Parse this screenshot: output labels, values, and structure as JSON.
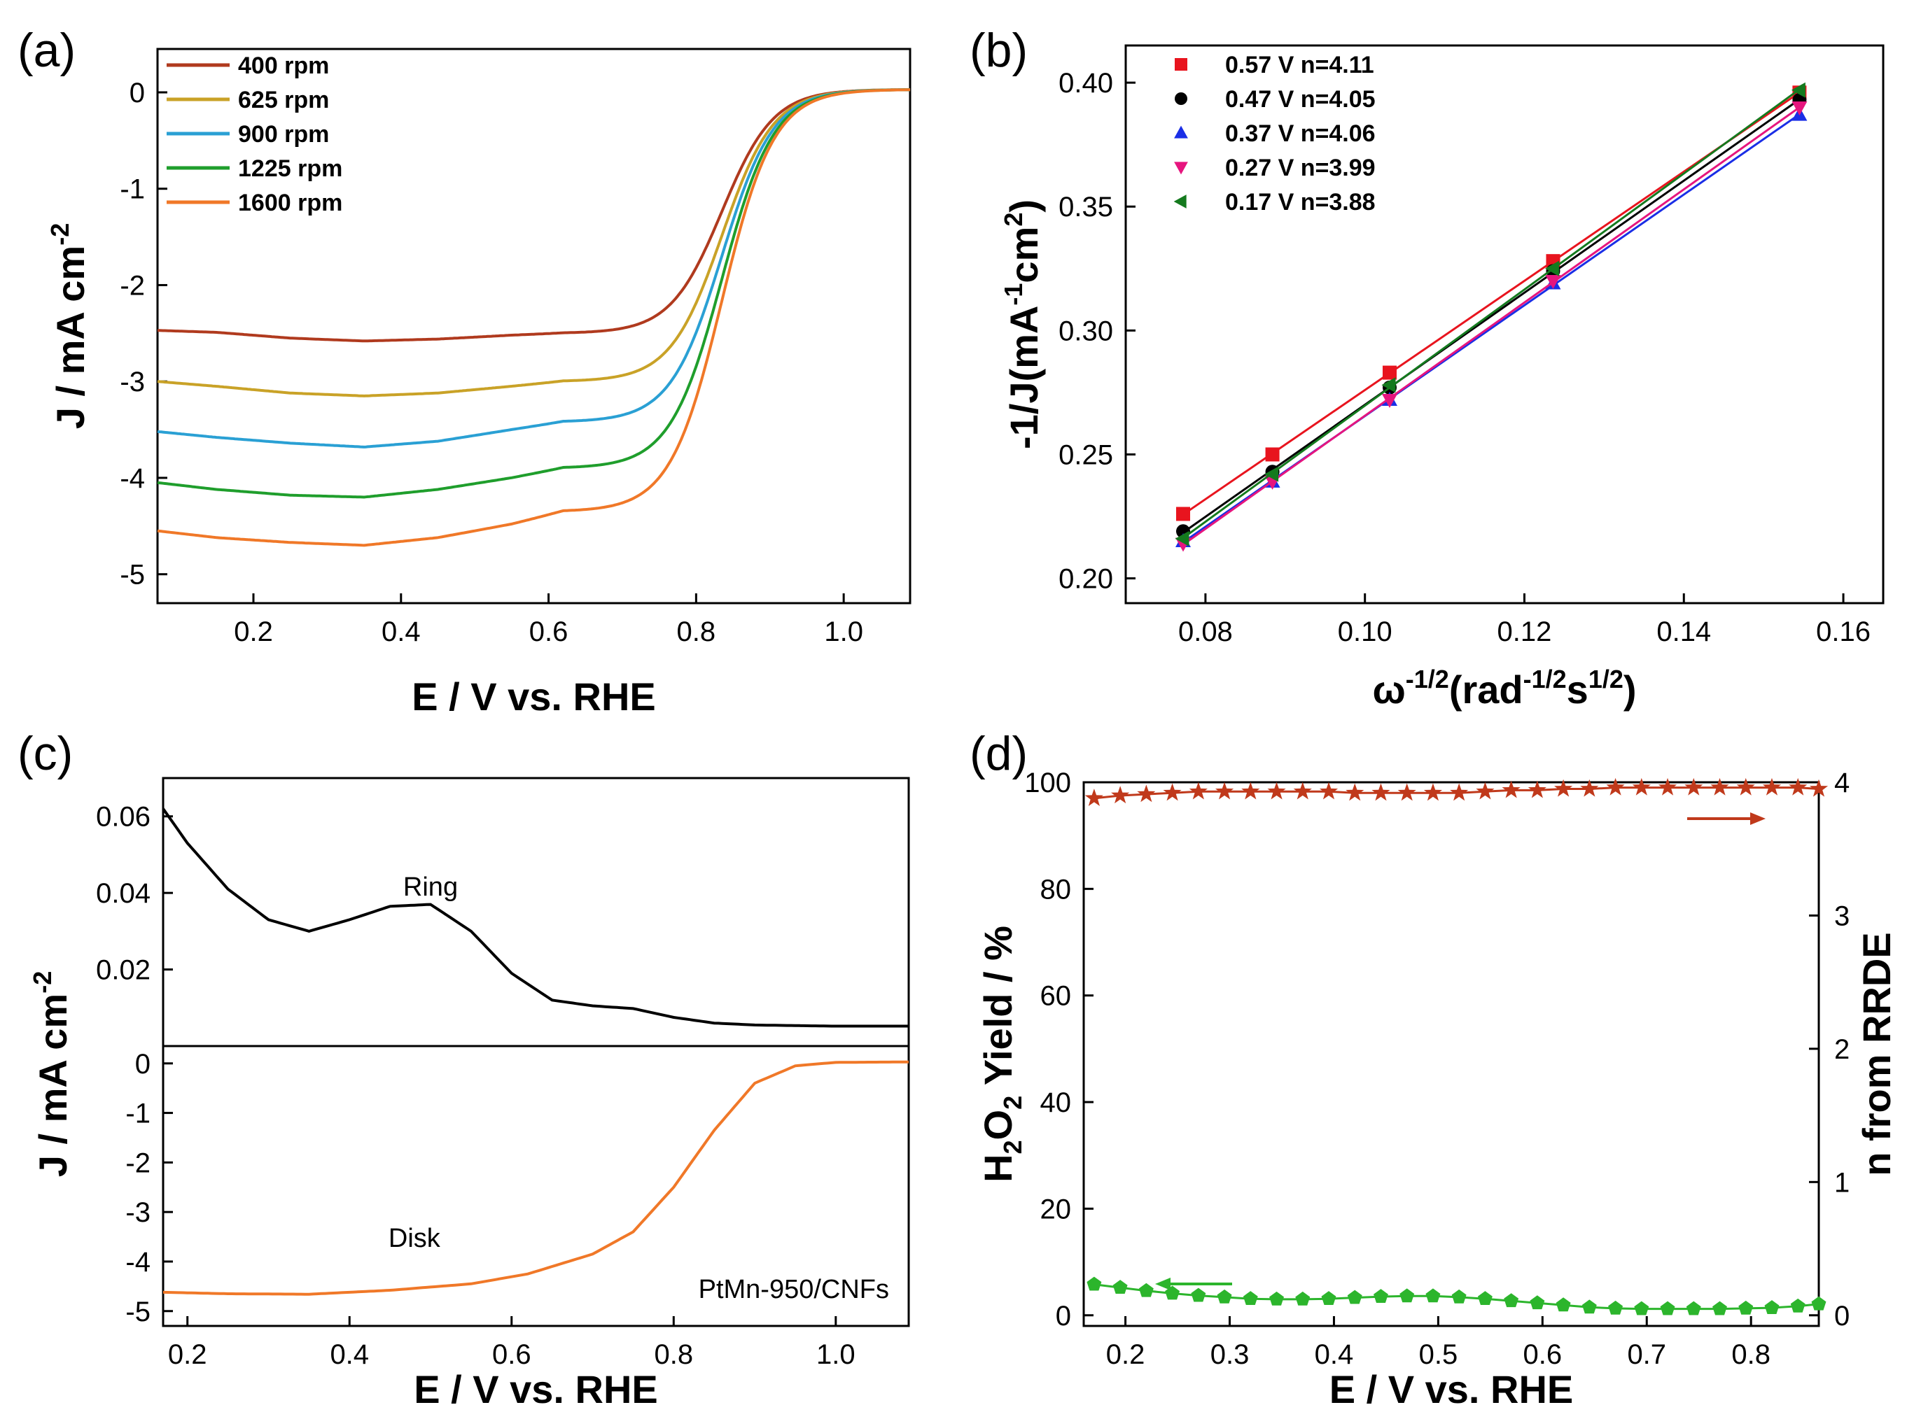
{
  "figure": {
    "panels": [
      "(a)",
      "(b)",
      "(c)",
      "(d)"
    ]
  },
  "chart_data": [
    {
      "id": "a",
      "type": "line",
      "label": "(a)",
      "xlabel": "E / V vs. RHE",
      "ylabel_parts": [
        "J / mA cm",
        "-2"
      ],
      "xlim": [
        0.07,
        1.09
      ],
      "ylim": [
        -5.3,
        0.45
      ],
      "xticks": [
        0.2,
        0.4,
        0.6,
        0.8,
        1.0
      ],
      "xtick_labels": [
        "0.2",
        "0.4",
        "0.6",
        "0.8",
        "1.0"
      ],
      "yticks": [
        0,
        -1,
        -2,
        -3,
        -4,
        -5
      ],
      "ytick_labels": [
        "0",
        "-1",
        "-2",
        "-3",
        "-4",
        "-5"
      ],
      "legend_position": "top-left",
      "series": [
        {
          "name": "400 rpm",
          "color": "#b03a1e",
          "limit": -2.47,
          "plateau": [
            [
              0.07,
              -2.47
            ],
            [
              0.15,
              -2.49
            ],
            [
              0.25,
              -2.55
            ],
            [
              0.35,
              -2.58
            ],
            [
              0.45,
              -2.56
            ],
            [
              0.55,
              -2.52
            ],
            [
              0.62,
              -2.5
            ]
          ]
        },
        {
          "name": "625 rpm",
          "color": "#c9a227",
          "limit": -3.0,
          "plateau": [
            [
              0.07,
              -3.0
            ],
            [
              0.15,
              -3.05
            ],
            [
              0.25,
              -3.12
            ],
            [
              0.35,
              -3.15
            ],
            [
              0.45,
              -3.12
            ],
            [
              0.55,
              -3.05
            ],
            [
              0.62,
              -3.0
            ]
          ]
        },
        {
          "name": "900 rpm",
          "color": "#2aa0d4",
          "limit": -3.52,
          "plateau": [
            [
              0.07,
              -3.52
            ],
            [
              0.15,
              -3.58
            ],
            [
              0.25,
              -3.64
            ],
            [
              0.35,
              -3.68
            ],
            [
              0.45,
              -3.62
            ],
            [
              0.55,
              -3.5
            ],
            [
              0.62,
              -3.42
            ]
          ]
        },
        {
          "name": "1225 rpm",
          "color": "#1f9e2c",
          "limit": -4.05,
          "plateau": [
            [
              0.07,
              -4.05
            ],
            [
              0.15,
              -4.12
            ],
            [
              0.25,
              -4.18
            ],
            [
              0.35,
              -4.2
            ],
            [
              0.45,
              -4.12
            ],
            [
              0.55,
              -4.0
            ],
            [
              0.62,
              -3.9
            ]
          ]
        },
        {
          "name": "1600 rpm",
          "color": "#f07828",
          "limit": -4.55,
          "plateau": [
            [
              0.07,
              -4.55
            ],
            [
              0.15,
              -4.62
            ],
            [
              0.25,
              -4.67
            ],
            [
              0.35,
              -4.7
            ],
            [
              0.45,
              -4.62
            ],
            [
              0.55,
              -4.48
            ],
            [
              0.62,
              -4.35
            ]
          ]
        }
      ]
    },
    {
      "id": "b",
      "type": "scatter",
      "label": "(b)",
      "xlabel_parts": [
        "ω",
        "-1/2",
        "(rad",
        "-1/2",
        "s",
        "1/2",
        ")"
      ],
      "ylabel_parts": [
        "-1/J(mA",
        "-1",
        "cm",
        "2",
        ")"
      ],
      "xlim": [
        0.07,
        0.165
      ],
      "ylim": [
        0.19,
        0.415
      ],
      "xticks": [
        0.08,
        0.1,
        0.12,
        0.14,
        0.16
      ],
      "xtick_labels": [
        "0.08",
        "0.10",
        "0.12",
        "0.14",
        "0.16"
      ],
      "yticks": [
        0.2,
        0.25,
        0.3,
        0.35,
        0.4
      ],
      "ytick_labels": [
        "0.20",
        "0.25",
        "0.30",
        "0.35",
        "0.40"
      ],
      "legend_position": "top-left",
      "x": [
        0.0772,
        0.0884,
        0.1031,
        0.1236,
        0.1545
      ],
      "series": [
        {
          "name": "0.57 V n=4.11",
          "color": "#e8141e",
          "marker": "square",
          "values": [
            0.226,
            0.25,
            0.283,
            0.328,
            0.396
          ]
        },
        {
          "name": "0.47 V n=4.05",
          "color": "#000000",
          "marker": "circle",
          "values": [
            0.219,
            0.243,
            0.277,
            0.324,
            0.393
          ]
        },
        {
          "name": "0.37 V n=4.06",
          "color": "#1a2ee6",
          "marker": "triangle-up",
          "values": [
            0.215,
            0.239,
            0.272,
            0.319,
            0.387
          ]
        },
        {
          "name": "0.27 V n=3.99",
          "color": "#e6157e",
          "marker": "triangle-down",
          "values": [
            0.214,
            0.239,
            0.272,
            0.32,
            0.39
          ]
        },
        {
          "name": "0.17 V n=3.88",
          "color": "#147a1e",
          "marker": "triangle-left",
          "values": [
            0.216,
            0.242,
            0.278,
            0.325,
            0.397
          ]
        }
      ]
    },
    {
      "id": "c",
      "type": "line",
      "label": "(c)",
      "xlabel": "E / V vs. RHE",
      "ylabel_parts": [
        "J / mA cm",
        "-2"
      ],
      "xlim": [
        0.17,
        1.09
      ],
      "xticks": [
        0.2,
        0.4,
        0.6,
        0.8,
        1.0
      ],
      "xtick_labels": [
        "0.2",
        "0.4",
        "0.6",
        "0.8",
        "1.0"
      ],
      "ring": {
        "name": "Ring",
        "color": "#000000",
        "ylim": [
          0.0,
          0.07
        ],
        "yticks": [
          0.02,
          0.04,
          0.06
        ],
        "ytick_labels": [
          "0.02",
          "0.04",
          "0.06"
        ],
        "points": [
          [
            0.17,
            0.062
          ],
          [
            0.2,
            0.053
          ],
          [
            0.25,
            0.041
          ],
          [
            0.3,
            0.033
          ],
          [
            0.35,
            0.03
          ],
          [
            0.4,
            0.033
          ],
          [
            0.45,
            0.0365
          ],
          [
            0.5,
            0.037
          ],
          [
            0.55,
            0.03
          ],
          [
            0.6,
            0.019
          ],
          [
            0.65,
            0.012
          ],
          [
            0.7,
            0.0105
          ],
          [
            0.75,
            0.0098
          ],
          [
            0.8,
            0.0075
          ],
          [
            0.85,
            0.006
          ],
          [
            0.9,
            0.0055
          ],
          [
            1.0,
            0.0052
          ],
          [
            1.09,
            0.0052
          ]
        ]
      },
      "disk": {
        "name": "Disk",
        "color": "#f07828",
        "ylim": [
          -5.3,
          0.35
        ],
        "yticks": [
          0,
          -1,
          -2,
          -3,
          -4,
          -5
        ],
        "ytick_labels": [
          "0",
          "-1",
          "-2",
          "-3",
          "-4",
          "-5"
        ],
        "points": [
          [
            0.17,
            -4.62
          ],
          [
            0.25,
            -4.65
          ],
          [
            0.35,
            -4.66
          ],
          [
            0.45,
            -4.58
          ],
          [
            0.55,
            -4.45
          ],
          [
            0.62,
            -4.25
          ],
          [
            0.7,
            -3.85
          ],
          [
            0.75,
            -3.4
          ],
          [
            0.8,
            -2.5
          ],
          [
            0.85,
            -1.35
          ],
          [
            0.9,
            -0.4
          ],
          [
            0.95,
            -0.05
          ],
          [
            1.0,
            0.02
          ],
          [
            1.09,
            0.03
          ]
        ]
      },
      "annotation": "PtMn-950/CNFs"
    },
    {
      "id": "d",
      "type": "line",
      "label": "(d)",
      "xlabel": "E / V vs. RHE",
      "ylabel_left_parts": [
        "H",
        "2",
        "O",
        "2",
        " Yield / %"
      ],
      "ylabel_right": "n from RRDE",
      "xlim": [
        0.16,
        0.865
      ],
      "ylim_left": [
        -2,
        100
      ],
      "ylim_right": [
        -0.08,
        4.0
      ],
      "xticks": [
        0.2,
        0.3,
        0.4,
        0.5,
        0.6,
        0.7,
        0.8
      ],
      "xtick_labels": [
        "0.2",
        "0.3",
        "0.4",
        "0.5",
        "0.6",
        "0.7",
        "0.8"
      ],
      "yticks_left": [
        0,
        20,
        40,
        60,
        80,
        100
      ],
      "ytick_labels_left": [
        "0",
        "20",
        "40",
        "60",
        "80",
        "100"
      ],
      "yticks_right": [
        0,
        1,
        2,
        3,
        4
      ],
      "ytick_labels_right": [
        "0",
        "1",
        "2",
        "3",
        "4"
      ],
      "series": [
        {
          "name": "n from RRDE",
          "axis": "right",
          "color": "#c0391b",
          "marker": "star",
          "x": [
            0.17,
            0.195,
            0.22,
            0.245,
            0.27,
            0.295,
            0.32,
            0.345,
            0.37,
            0.395,
            0.42,
            0.445,
            0.47,
            0.495,
            0.52,
            0.545,
            0.57,
            0.595,
            0.62,
            0.645,
            0.67,
            0.695,
            0.72,
            0.745,
            0.77,
            0.795,
            0.82,
            0.845,
            0.865
          ],
          "y": [
            3.88,
            3.9,
            3.91,
            3.92,
            3.93,
            3.93,
            3.93,
            3.93,
            3.93,
            3.93,
            3.92,
            3.92,
            3.92,
            3.92,
            3.92,
            3.93,
            3.94,
            3.94,
            3.95,
            3.95,
            3.96,
            3.96,
            3.96,
            3.96,
            3.96,
            3.96,
            3.96,
            3.96,
            3.95
          ]
        },
        {
          "name": "H2O2 Yield",
          "axis": "left",
          "color": "#2cb52c",
          "marker": "pentagon",
          "x": [
            0.17,
            0.195,
            0.22,
            0.245,
            0.27,
            0.295,
            0.32,
            0.345,
            0.37,
            0.395,
            0.42,
            0.445,
            0.47,
            0.495,
            0.52,
            0.545,
            0.57,
            0.595,
            0.62,
            0.645,
            0.67,
            0.695,
            0.72,
            0.745,
            0.77,
            0.795,
            0.82,
            0.845,
            0.865
          ],
          "y": [
            5.8,
            5.2,
            4.6,
            4.1,
            3.7,
            3.4,
            3.1,
            3.0,
            3.0,
            3.1,
            3.3,
            3.5,
            3.6,
            3.6,
            3.4,
            3.1,
            2.7,
            2.3,
            1.9,
            1.5,
            1.3,
            1.2,
            1.2,
            1.2,
            1.2,
            1.3,
            1.4,
            1.7,
            2.1
          ]
        }
      ]
    }
  ]
}
